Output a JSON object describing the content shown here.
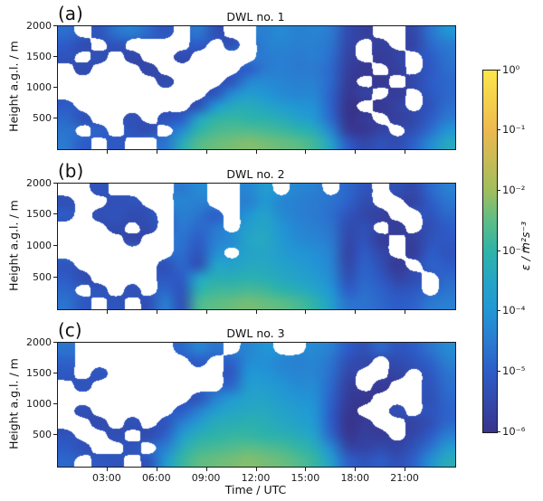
{
  "figure": {
    "background": "#ffffff",
    "axis_color": "#1a1a1a"
  },
  "chart_data": {
    "type": "heatmap",
    "panels": [
      {
        "letter": "(a)",
        "title": "DWL no. 1",
        "grid": [
          [
            -4.7,
            null,
            -5.2,
            -4.6,
            -4.4,
            -4.8,
            -5.2,
            null,
            -4.5,
            -5.3,
            null,
            null,
            -4.4,
            -4.2,
            -4.4,
            -4.3,
            -4.5,
            -5.4,
            -5.7,
            null,
            null,
            -5.5,
            -4.6,
            -4.0
          ],
          [
            -5.0,
            -5.4,
            null,
            -5.2,
            null,
            null,
            null,
            null,
            -5.0,
            null,
            -5.3,
            null,
            -4.4,
            -4.3,
            -4.4,
            -4.4,
            -4.6,
            -5.5,
            null,
            -5.7,
            null,
            -5.6,
            -4.8,
            -4.5
          ],
          [
            -5.2,
            null,
            -5.3,
            null,
            -5.5,
            null,
            null,
            -5.4,
            null,
            null,
            null,
            null,
            -4.5,
            -4.4,
            -4.5,
            -4.4,
            -4.7,
            -5.6,
            null,
            -5.8,
            -5.6,
            null,
            -5.0,
            -4.6
          ],
          [
            null,
            -5.4,
            null,
            null,
            null,
            -5.5,
            null,
            null,
            null,
            null,
            null,
            -5.0,
            -4.5,
            -4.4,
            -4.5,
            -4.5,
            -4.8,
            -5.7,
            -5.9,
            null,
            -5.7,
            null,
            -5.1,
            -4.7
          ],
          [
            null,
            null,
            null,
            null,
            null,
            null,
            -5.4,
            null,
            null,
            null,
            -5.2,
            -4.3,
            -4.2,
            -4.3,
            -4.4,
            -4.4,
            -4.8,
            -5.8,
            null,
            -5.9,
            null,
            -5.5,
            -5.0,
            -4.8
          ],
          [
            null,
            null,
            null,
            null,
            null,
            null,
            null,
            null,
            null,
            -5.2,
            -4.2,
            -3.8,
            -4.0,
            -4.2,
            -4.3,
            -4.3,
            -4.9,
            -5.9,
            -5.6,
            null,
            -5.8,
            null,
            -5.1,
            -4.8
          ],
          [
            -5.0,
            null,
            null,
            null,
            null,
            null,
            null,
            null,
            -5.3,
            -4.0,
            -3.4,
            -3.3,
            -3.5,
            -3.8,
            -4.0,
            -4.1,
            -4.9,
            -6.0,
            null,
            -5.9,
            -5.6,
            null,
            -5.2,
            -4.7
          ],
          [
            -4.8,
            -5.3,
            null,
            null,
            -5.3,
            null,
            -5.2,
            -5.0,
            -3.6,
            -3.0,
            -2.9,
            -3.0,
            -3.1,
            -3.3,
            -3.6,
            -3.9,
            -4.8,
            -6.0,
            -5.8,
            null,
            -5.7,
            -5.5,
            -5.0,
            -4.5
          ],
          [
            -4.6,
            null,
            -4.9,
            null,
            -5.2,
            -5.4,
            null,
            -4.2,
            -3.0,
            -2.7,
            -2.6,
            -2.6,
            -2.7,
            -2.8,
            -3.0,
            -3.3,
            -4.3,
            -5.8,
            -5.9,
            -5.6,
            null,
            -5.3,
            -4.7,
            -4.0
          ],
          [
            -4.5,
            -5.0,
            null,
            -5.1,
            null,
            null,
            -4.6,
            -3.3,
            -2.6,
            -2.4,
            -2.3,
            -2.2,
            -2.3,
            -2.4,
            -2.5,
            -2.8,
            -3.6,
            -5.0,
            -5.5,
            -5.2,
            -5.4,
            -4.9,
            -4.2,
            -3.4
          ]
        ]
      },
      {
        "letter": "(b)",
        "title": "DWL no. 2",
        "grid": [
          [
            null,
            null,
            -5.2,
            null,
            null,
            null,
            null,
            -4.5,
            -4.2,
            null,
            null,
            -4.3,
            -3.8,
            null,
            -4.3,
            -4.4,
            null,
            -4.8,
            -5.2,
            null,
            -5.3,
            -5.5,
            -4.8,
            -4.4
          ],
          [
            -5.3,
            null,
            null,
            -5.3,
            -5.2,
            null,
            null,
            -4.3,
            -4.4,
            null,
            null,
            -4.4,
            -3.9,
            -4.3,
            -4.4,
            -4.5,
            -4.6,
            -4.9,
            -5.4,
            null,
            null,
            -5.6,
            -5.0,
            -4.6
          ],
          [
            -5.0,
            null,
            -5.3,
            -5.2,
            -5.4,
            -5.3,
            null,
            -4.4,
            -4.6,
            -5.0,
            null,
            -4.0,
            -3.6,
            -4.2,
            -4.4,
            -4.5,
            -4.7,
            -5.2,
            -5.5,
            -5.7,
            null,
            null,
            -5.2,
            -4.8
          ],
          [
            null,
            null,
            null,
            -5.4,
            null,
            -5.4,
            null,
            -4.5,
            -4.8,
            -4.6,
            null,
            -3.7,
            -3.5,
            -4.0,
            -4.3,
            -4.4,
            -4.6,
            -5.4,
            -5.3,
            null,
            -5.8,
            null,
            -5.3,
            -5.0
          ],
          [
            null,
            null,
            null,
            null,
            -5.5,
            null,
            null,
            -4.6,
            -5.0,
            -4.4,
            -4.2,
            -3.5,
            -3.4,
            -3.9,
            -4.2,
            -4.3,
            -4.5,
            -5.5,
            -5.2,
            -5.8,
            null,
            -5.7,
            -5.2,
            -5.1
          ],
          [
            null,
            null,
            null,
            null,
            null,
            null,
            null,
            -4.7,
            -5.2,
            -4.2,
            null,
            -3.6,
            -3.5,
            -3.8,
            -4.0,
            -4.1,
            -4.4,
            -5.6,
            -5.0,
            -5.5,
            null,
            -5.8,
            -5.0,
            -5.2
          ],
          [
            -5.2,
            null,
            null,
            null,
            null,
            null,
            -5.3,
            -4.8,
            -5.3,
            -3.6,
            -3.6,
            -3.4,
            -3.4,
            -3.6,
            -3.8,
            -4.0,
            -4.3,
            -5.5,
            -4.9,
            -5.3,
            -5.9,
            null,
            -4.9,
            -5.0
          ],
          [
            -5.0,
            -5.4,
            null,
            null,
            null,
            null,
            -5.1,
            -5.0,
            -3.6,
            -3.2,
            -3.2,
            -3.1,
            -3.2,
            -3.4,
            -3.6,
            -3.8,
            -4.2,
            -5.3,
            -4.8,
            -5.1,
            -5.6,
            -5.4,
            null,
            -4.8
          ],
          [
            -4.8,
            null,
            -5.2,
            null,
            -5.3,
            null,
            -4.8,
            -5.2,
            -3.1,
            -2.8,
            -2.8,
            -2.7,
            -2.8,
            -3.0,
            -3.2,
            -3.5,
            -4.0,
            -5.0,
            -4.7,
            -4.9,
            -5.2,
            -5.1,
            null,
            -4.6
          ],
          [
            -4.6,
            -5.1,
            null,
            -5.2,
            null,
            -5.3,
            -4.4,
            -5.3,
            -2.7,
            -2.5,
            -2.4,
            -2.3,
            -2.4,
            -2.5,
            -2.7,
            -3.0,
            -3.7,
            -4.6,
            -4.6,
            -4.8,
            -5.0,
            -4.9,
            -4.5,
            -4.4
          ]
        ]
      },
      {
        "letter": "(c)",
        "title": "DWL no. 3",
        "grid": [
          [
            -4.6,
            null,
            null,
            null,
            null,
            null,
            null,
            -4.8,
            -4.3,
            -4.6,
            null,
            -4.3,
            -4.0,
            null,
            null,
            -4.2,
            -4.4,
            -5.0,
            -5.3,
            -4.8,
            -5.2,
            -5.0,
            -4.6,
            -4.2
          ],
          [
            -4.9,
            null,
            null,
            null,
            null,
            null,
            null,
            null,
            -5.0,
            null,
            -4.9,
            -4.2,
            -4.1,
            -4.3,
            -4.4,
            -4.3,
            -4.6,
            -5.3,
            -5.5,
            null,
            -5.4,
            -5.2,
            -4.9,
            -4.4
          ],
          [
            -5.1,
            null,
            -5.2,
            null,
            null,
            null,
            null,
            null,
            null,
            null,
            -5.1,
            -4.0,
            -4.0,
            -4.2,
            -4.3,
            -4.3,
            -4.7,
            -5.5,
            null,
            null,
            -5.6,
            null,
            -5.1,
            -4.6
          ],
          [
            null,
            -5.2,
            null,
            null,
            null,
            null,
            null,
            null,
            null,
            null,
            -4.8,
            -3.8,
            -3.8,
            -4.0,
            -4.2,
            -4.2,
            -4.8,
            -5.7,
            null,
            -5.8,
            null,
            null,
            -5.2,
            -4.7
          ],
          [
            null,
            null,
            null,
            null,
            null,
            null,
            null,
            null,
            -5.2,
            -4.4,
            -3.9,
            -3.6,
            -3.6,
            -3.8,
            -4.0,
            -4.1,
            -4.9,
            -5.8,
            -5.9,
            null,
            null,
            null,
            -5.3,
            -4.8
          ],
          [
            null,
            -5.3,
            null,
            null,
            null,
            null,
            null,
            -5.0,
            -4.4,
            -3.8,
            -3.5,
            -3.4,
            -3.4,
            -3.6,
            -3.8,
            -4.0,
            -5.0,
            -5.9,
            null,
            null,
            -5.3,
            null,
            -5.2,
            -4.9
          ],
          [
            null,
            null,
            -5.4,
            null,
            -5.3,
            null,
            -5.2,
            -4.4,
            -3.8,
            -3.3,
            -3.2,
            -3.1,
            -3.2,
            -3.4,
            -3.6,
            -3.9,
            -5.0,
            -6.0,
            -5.8,
            null,
            null,
            -5.6,
            -5.3,
            -4.8
          ],
          [
            -5.2,
            null,
            null,
            -5.3,
            null,
            -5.4,
            -4.9,
            -3.8,
            -3.2,
            -3.0,
            -2.9,
            -2.9,
            -3.0,
            -3.1,
            -3.3,
            -3.6,
            -4.8,
            -5.9,
            -5.7,
            -5.8,
            null,
            -5.5,
            -5.0,
            -4.4
          ],
          [
            -5.0,
            -5.3,
            null,
            null,
            -5.2,
            null,
            -4.4,
            -3.3,
            -2.8,
            -2.7,
            -2.6,
            -2.5,
            -2.6,
            -2.7,
            -2.9,
            -3.2,
            -4.2,
            -5.5,
            -5.6,
            -5.4,
            -5.6,
            -5.2,
            -4.6,
            -3.8
          ],
          [
            -4.8,
            null,
            -5.1,
            -5.2,
            null,
            -5.2,
            -3.9,
            -2.9,
            -2.5,
            -2.4,
            -2.3,
            -2.2,
            -2.3,
            -2.4,
            -2.6,
            -2.9,
            -3.7,
            -4.9,
            -5.2,
            -5.0,
            -5.3,
            -4.9,
            -4.1,
            -3.3
          ]
        ]
      }
    ],
    "x_axis": {
      "label": "Time / UTC",
      "tick_labels": [
        "03:00",
        "06:00",
        "09:00",
        "12:00",
        "15:00",
        "18:00",
        "21:00"
      ],
      "tick_hours": [
        3,
        6,
        9,
        12,
        15,
        18,
        21
      ],
      "range_hours": [
        0,
        24
      ]
    },
    "y_axis": {
      "label": "Height a.g.l. / m",
      "tick_labels": [
        "2000",
        "1500",
        "1000",
        "500"
      ],
      "tick_values_m": [
        2000,
        1500,
        1000,
        500
      ],
      "range_m": [
        0,
        2000
      ]
    },
    "colorbar": {
      "label": "ε / m²s⁻³",
      "scale": "log10",
      "tick_labels": [
        "10⁰",
        "10⁻¹",
        "10⁻²",
        "10⁻³",
        "10⁻⁴",
        "10⁻⁵",
        "10⁻⁶"
      ],
      "tick_log10_values": [
        0,
        -1,
        -2,
        -3,
        -4,
        -5,
        -6
      ],
      "colormap_stops": [
        [
          0,
          "#fde64b"
        ],
        [
          -1,
          "#ecb94e"
        ],
        [
          -2,
          "#9fbe5e"
        ],
        [
          -2.5,
          "#5cbd86"
        ],
        [
          -3,
          "#2eb3a9"
        ],
        [
          -3.5,
          "#25a5c6"
        ],
        [
          -4,
          "#2196d5"
        ],
        [
          -4.5,
          "#2b7ad0"
        ],
        [
          -5,
          "#2d5cc8"
        ],
        [
          -6,
          "#38348c"
        ]
      ]
    },
    "grid_definition": {
      "cols": 24,
      "col_width_hours": 1,
      "rows": 10,
      "row_height_m": 200,
      "rows_order": "top(2000m)-to-bottom(0m)",
      "cell_value": "log10(epsilon / m^2 s^-3)",
      "null_value": "no data (white)"
    }
  }
}
